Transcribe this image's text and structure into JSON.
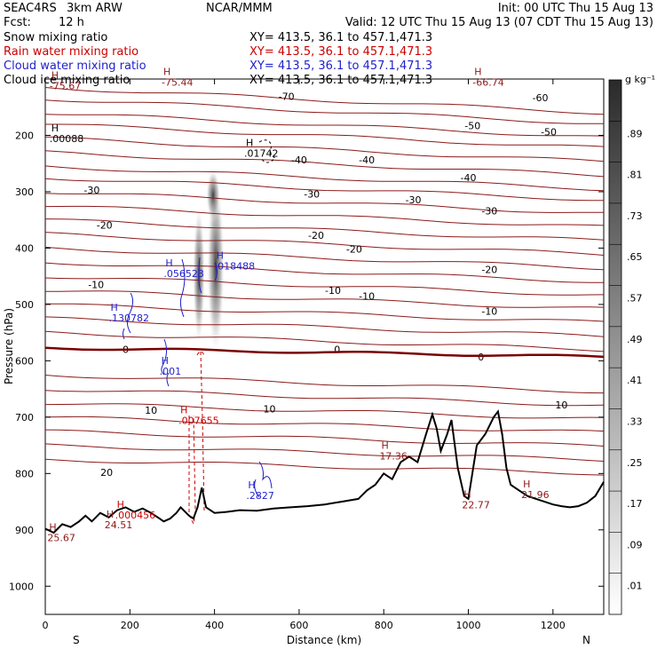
{
  "header": {
    "model": "SEAC4RS",
    "resolution": "3km ARW",
    "org": "NCAR/MMM",
    "init": "Init: 00 UTC Thu 15 Aug 13",
    "fcst_label": "Fcst:",
    "fcst_value": "12 h",
    "valid": "Valid: 12 UTC Thu 15 Aug 13 (07 CDT Thu 15 Aug 13)",
    "fields": [
      {
        "name": "Snow mixing ratio",
        "xy": "XY= 413.5, 36.1 to 457.1,471.3",
        "color": "#000000"
      },
      {
        "name": "Rain water mixing ratio",
        "xy": "XY= 413.5, 36.1 to 457.1,471.3",
        "color": "#cc0000"
      },
      {
        "name": "Cloud water mixing ratio",
        "xy": "XY= 413.5, 36.1 to 457.1,471.3",
        "color": "#1f1fcc"
      },
      {
        "name": "Cloud ice mixing ratio",
        "xy": "XY= 413.5, 36.1 to 457.1,471.3",
        "color": "#000000"
      }
    ]
  },
  "chart_data": {
    "type": "cross-section",
    "xlabel": "Distance (km)",
    "ylabel": "Pressure (hPa)",
    "xlim": [
      0,
      1320
    ],
    "ylim": [
      1050,
      100
    ],
    "x_ticks": [
      0,
      200,
      400,
      600,
      800,
      1000,
      1200
    ],
    "y_ticks": [
      200,
      300,
      400,
      500,
      600,
      700,
      800,
      900,
      1000
    ],
    "direction_left": "S",
    "direction_right": "N",
    "colorbar": {
      "unit": "g kg⁻¹",
      "levels": [
        ".01",
        ".09",
        ".17",
        ".25",
        ".33",
        ".41",
        ".49",
        ".57",
        ".65",
        ".73",
        ".81",
        ".89"
      ]
    },
    "temperature_contours": [
      {
        "label": "-70",
        "x": 570,
        "p": 131
      },
      {
        "label": "-60",
        "x": 1170,
        "p": 133
      },
      {
        "label": "-50",
        "x": 1010,
        "p": 183
      },
      {
        "label": "-50",
        "x": 1190,
        "p": 194
      },
      {
        "label": "-40",
        "x": 600,
        "p": 243
      },
      {
        "label": "-40",
        "x": 760,
        "p": 243
      },
      {
        "label": "-40",
        "x": 1000,
        "p": 275
      },
      {
        "label": "-30",
        "x": 110,
        "p": 297
      },
      {
        "label": "-30",
        "x": 630,
        "p": 304
      },
      {
        "label": "-30",
        "x": 870,
        "p": 314
      },
      {
        "label": "-30",
        "x": 1050,
        "p": 334
      },
      {
        "label": "-20",
        "x": 140,
        "p": 359
      },
      {
        "label": "-20",
        "x": 640,
        "p": 377
      },
      {
        "label": "-20",
        "x": 730,
        "p": 402
      },
      {
        "label": "-20",
        "x": 1050,
        "p": 438
      },
      {
        "label": "-10",
        "x": 120,
        "p": 465
      },
      {
        "label": "-10",
        "x": 680,
        "p": 475
      },
      {
        "label": "-10",
        "x": 760,
        "p": 485
      },
      {
        "label": "-10",
        "x": 1050,
        "p": 512
      },
      {
        "label": "0",
        "x": 190,
        "p": 580
      },
      {
        "label": "0",
        "x": 690,
        "p": 580
      },
      {
        "label": "0",
        "x": 1030,
        "p": 593
      },
      {
        "label": "10",
        "x": 250,
        "p": 688
      },
      {
        "label": "10",
        "x": 530,
        "p": 685
      },
      {
        "label": "10",
        "x": 1220,
        "p": 678
      },
      {
        "label": "20",
        "x": 145,
        "p": 798
      }
    ],
    "maxima": [
      {
        "label": ".00088",
        "x": 10,
        "p": 212,
        "color": "#000000"
      },
      {
        "label": "-75.67",
        "x": 10,
        "p": 118,
        "color": "#8b1a1a"
      },
      {
        "label": "-75.44",
        "x": 275,
        "p": 112,
        "color": "#8b1a1a"
      },
      {
        "label": "-66.74",
        "x": 1010,
        "p": 112,
        "color": "#8b1a1a"
      },
      {
        "label": ".01742",
        "x": 470,
        "p": 238,
        "color": "#000000"
      },
      {
        "label": ".056523",
        "x": 280,
        "p": 451,
        "color": "#1f1fcc"
      },
      {
        "label": ".018488",
        "x": 400,
        "p": 438,
        "color": "#1f1fcc"
      },
      {
        "label": ".130782",
        "x": 150,
        "p": 530,
        "color": "#1f1fcc"
      },
      {
        "label": ".001",
        "x": 270,
        "p": 625,
        "color": "#1f1fcc"
      },
      {
        "label": ".007655",
        "x": 315,
        "p": 712,
        "color": "#cc0000"
      },
      {
        "label": ".2827",
        "x": 475,
        "p": 845,
        "color": "#1f1fcc"
      },
      {
        "label": "17.36",
        "x": 790,
        "p": 775,
        "color": "#8b1a1a"
      },
      {
        "label": ".000456",
        "x": 165,
        "p": 880,
        "color": "#cc0000"
      },
      {
        "label": "24.51",
        "x": 140,
        "p": 897,
        "color": "#8b1a1a"
      },
      {
        "label": "25.67",
        "x": 5,
        "p": 920,
        "color": "#8b1a1a"
      },
      {
        "label": "22.77",
        "x": 985,
        "p": 862,
        "color": "#8b1a1a"
      },
      {
        "label": "21.96",
        "x": 1125,
        "p": 844,
        "color": "#8b1a1a"
      }
    ],
    "terrain": {
      "x": [
        0,
        20,
        40,
        60,
        80,
        95,
        110,
        130,
        150,
        170,
        190,
        210,
        230,
        250,
        270,
        280,
        295,
        310,
        320,
        340,
        350,
        360,
        370,
        380,
        400,
        430,
        460,
        500,
        540,
        580,
        620,
        660,
        700,
        740,
        760,
        780,
        800,
        820,
        840,
        860,
        880,
        900,
        915,
        925,
        935,
        950,
        960,
        975,
        990,
        1000,
        1020,
        1040,
        1060,
        1070,
        1080,
        1090,
        1100,
        1120,
        1140,
        1160,
        1180,
        1200,
        1220,
        1240,
        1260,
        1280,
        1300,
        1320
      ],
      "p": [
        898,
        905,
        890,
        895,
        885,
        875,
        885,
        870,
        878,
        865,
        860,
        868,
        862,
        870,
        880,
        885,
        880,
        870,
        860,
        875,
        880,
        860,
        825,
        860,
        870,
        868,
        865,
        866,
        862,
        860,
        858,
        855,
        850,
        845,
        830,
        820,
        800,
        810,
        780,
        770,
        780,
        730,
        695,
        720,
        760,
        730,
        705,
        790,
        840,
        845,
        750,
        730,
        700,
        690,
        730,
        790,
        820,
        830,
        840,
        845,
        850,
        855,
        858,
        860,
        858,
        852,
        840,
        815
      ]
    }
  }
}
